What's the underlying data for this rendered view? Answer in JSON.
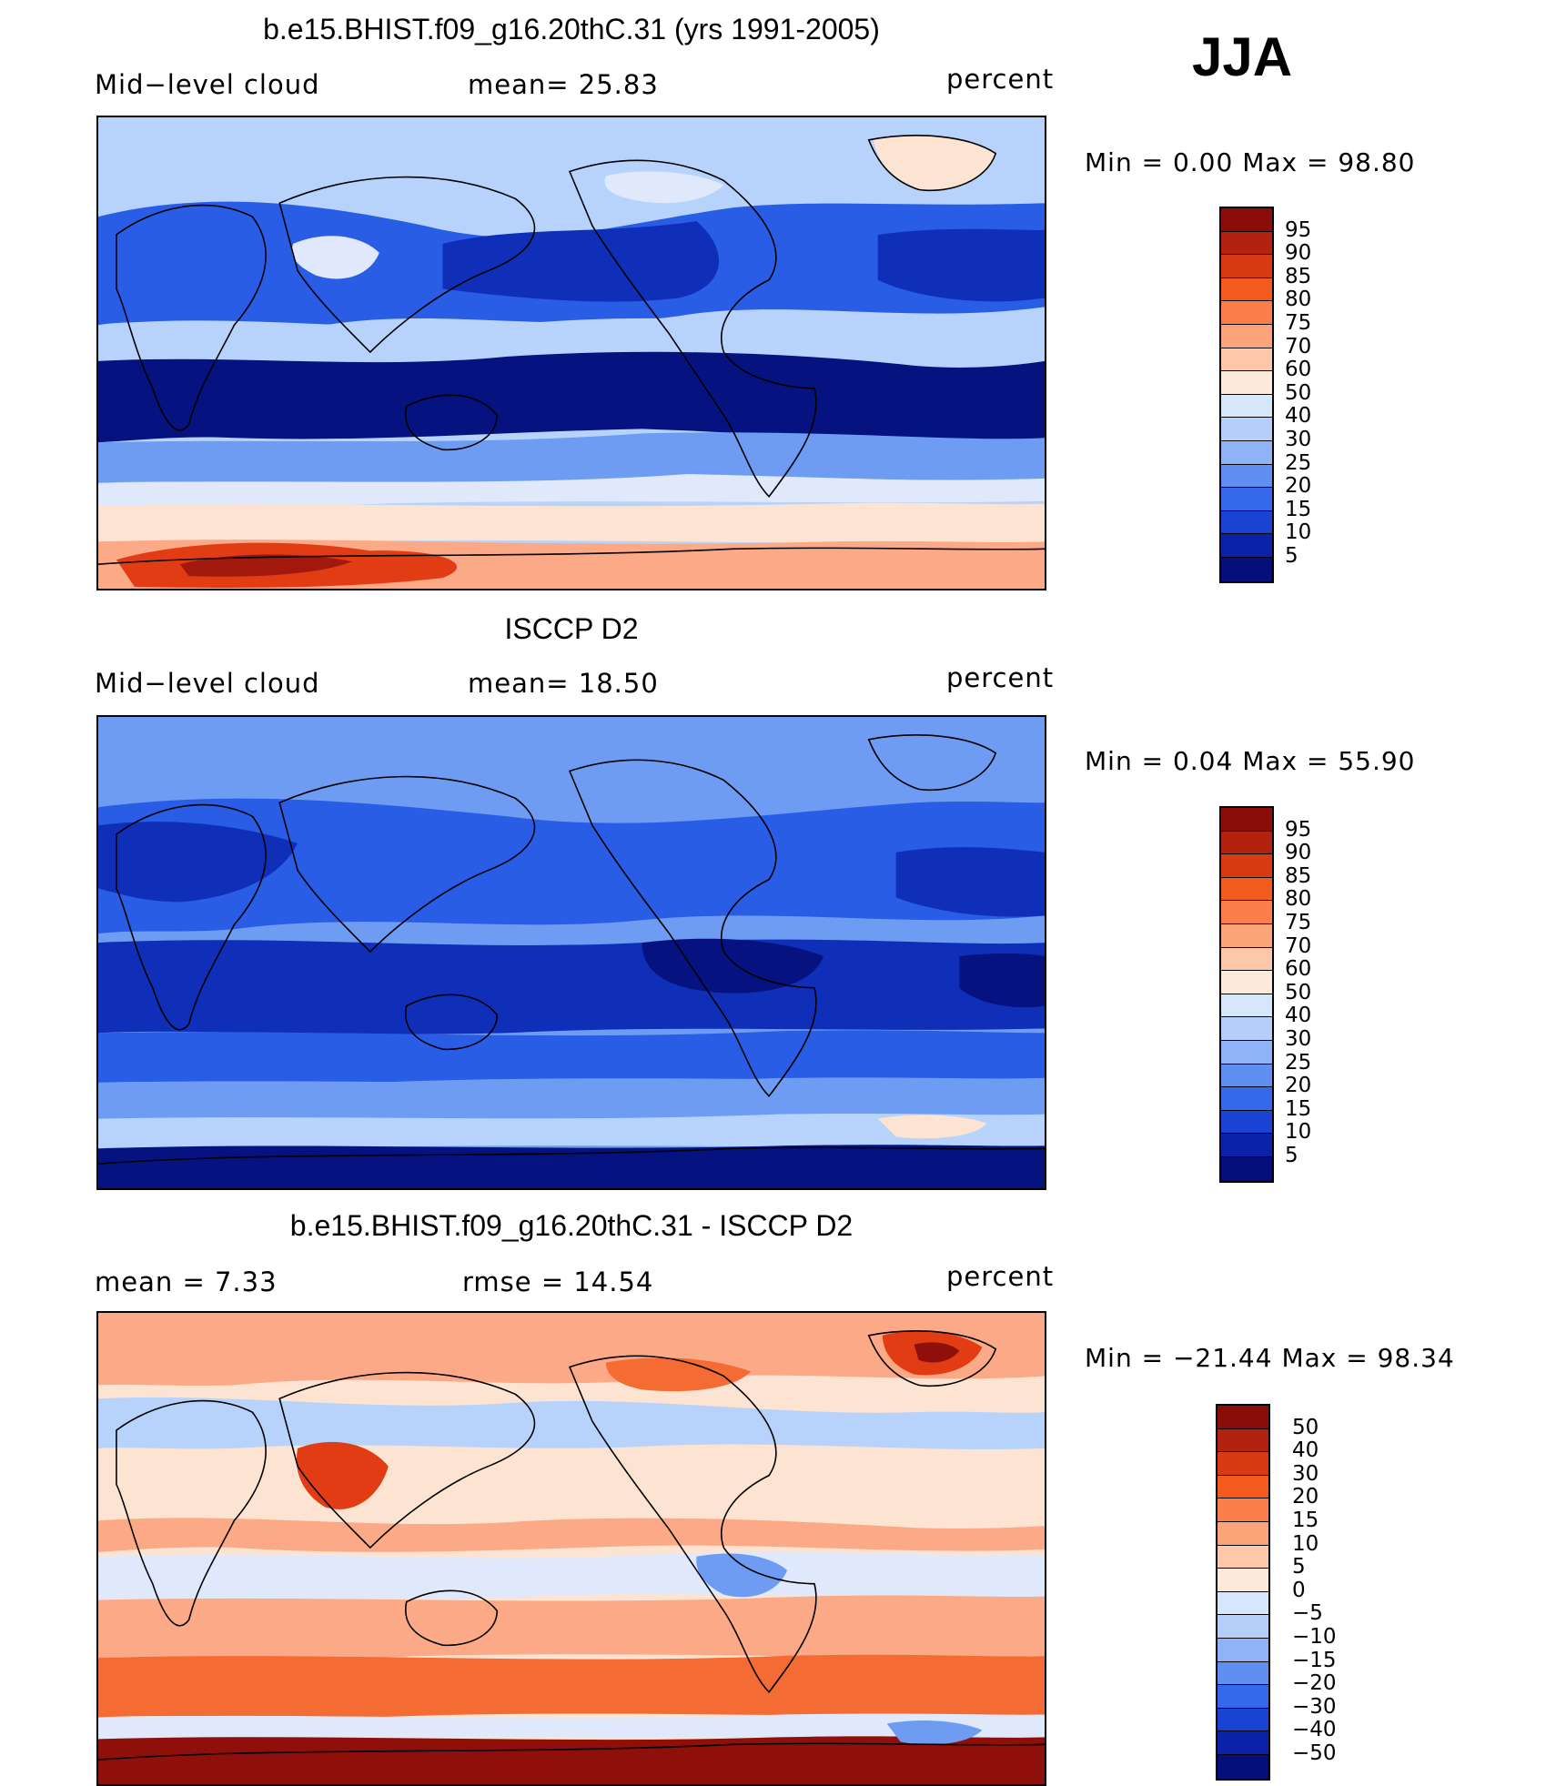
{
  "season": "JJA",
  "panels": [
    {
      "id": "model",
      "title": "b.e15.BHIST.f09_g16.20thC.31 (yrs 1991-2005)",
      "left_label": "Mid−level cloud",
      "mid_label": "mean=   25.83",
      "units": "percent",
      "minmax": "Min  =     0.00  Max  =    98.80",
      "colorbar_labels": [
        "95",
        "90",
        "85",
        "80",
        "75",
        "70",
        "60",
        "50",
        "40",
        "30",
        "25",
        "20",
        "15",
        "10",
        "5"
      ],
      "colorbar_colors": [
        "#8a0d0a",
        "#b3210f",
        "#d83a12",
        "#f25a1e",
        "#fb7e48",
        "#fca37a",
        "#fdc7aa",
        "#fde9dc",
        "#d6e6fb",
        "#b6cffa",
        "#8fb3f6",
        "#5f8ff1",
        "#3568ea",
        "#1843d3",
        "#0a21a8",
        "#050f7c"
      ],
      "map": {
        "background": "#b8d3fb",
        "colors": {
          "deep": "#06127f",
          "dark": "#0f2fb9",
          "mid": "#2a5de6",
          "light": "#6e9cf3",
          "pale": "#b8d3fb",
          "faint": "#dfe9fb",
          "peach": "#fde4d2",
          "salmon": "#fba987",
          "red": "#e13c14",
          "darkred": "#a3180d"
        }
      }
    },
    {
      "id": "obs",
      "title": "ISCCP D2",
      "left_label": "Mid−level cloud",
      "mid_label": "mean=   18.50",
      "units": "percent",
      "minmax": "Min  =     0.04  Max  =    55.90",
      "colorbar_labels": [
        "95",
        "90",
        "85",
        "80",
        "75",
        "70",
        "60",
        "50",
        "40",
        "30",
        "25",
        "20",
        "15",
        "10",
        "5"
      ],
      "colorbar_colors": [
        "#8a0d0a",
        "#b3210f",
        "#d83a12",
        "#f25a1e",
        "#fb7e48",
        "#fca37a",
        "#fdc7aa",
        "#fde9dc",
        "#d6e6fb",
        "#b6cffa",
        "#8fb3f6",
        "#5f8ff1",
        "#3568ea",
        "#1843d3",
        "#0a21a8",
        "#050f7c"
      ],
      "map": {
        "background": "#6e9cf3",
        "colors": {
          "deep": "#06127f",
          "dark": "#0f2fb9",
          "mid": "#2a5de6",
          "light": "#6e9cf3",
          "pale": "#b8d3fb",
          "faint": "#dfe9fb",
          "peach": "#fde4d2"
        }
      }
    },
    {
      "id": "diff",
      "title": "b.e15.BHIST.f09_g16.20thC.31 - ISCCP D2",
      "left_label": "mean  =      7.33",
      "mid_label": "rmse  =     14.54",
      "units": "percent",
      "minmax": "Min  = −21.44  Max  =    98.34",
      "colorbar_labels": [
        "50",
        "40",
        "30",
        "20",
        "15",
        "10",
        "5",
        "0",
        "−5",
        "−10",
        "−15",
        "−20",
        "−30",
        "−40",
        "−50"
      ],
      "colorbar_colors": [
        "#8a0d0a",
        "#b3210f",
        "#d83a12",
        "#f25a1e",
        "#fb7e48",
        "#fca37a",
        "#fdc7aa",
        "#fde9dc",
        "#d6e6fb",
        "#b6cffa",
        "#8fb3f6",
        "#5f8ff1",
        "#3568ea",
        "#1843d3",
        "#0a21a8",
        "#050f7c"
      ],
      "map": {
        "background": "#fde4d2",
        "colors": {
          "deep": "#06127f",
          "mid": "#2a5de6",
          "light": "#6e9cf3",
          "pale": "#b8d3fb",
          "faint": "#dfe9fb",
          "peach": "#fde4d2",
          "salmon": "#fba987",
          "orange": "#f46b34",
          "red": "#e13c14",
          "darkred": "#8f0f0a"
        }
      }
    }
  ]
}
